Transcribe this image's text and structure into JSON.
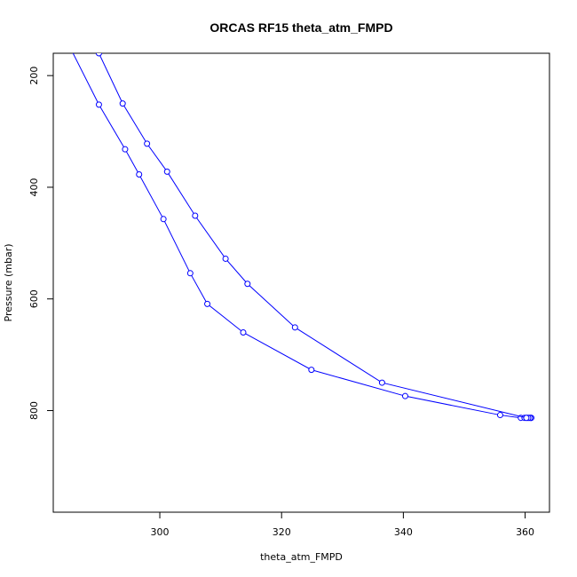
{
  "chart_data": {
    "type": "line",
    "title": "ORCAS RF15 theta_atm_FMPD",
    "xlabel": "theta_atm_FMPD",
    "ylabel": "Pressure (mbar)",
    "xlim": [
      282.5,
      364.0
    ],
    "ylim": [
      982.0,
      160.0
    ],
    "y_inverted": true,
    "x_ticks": [
      300,
      320,
      340,
      360
    ],
    "y_ticks": [
      200,
      400,
      600,
      800
    ],
    "grid": false,
    "legend": "none",
    "series_color": "#0000ff",
    "marker": "open-circle",
    "series": [
      {
        "x": [
          284.5,
          290.0,
          294.3,
          296.6,
          300.6,
          305.0,
          307.8,
          313.7,
          324.9,
          340.3,
          355.9,
          359.3,
          359.9,
          360.2,
          360.5,
          360.8,
          361.0
        ],
        "y": [
          133,
          252,
          332,
          377,
          457,
          554,
          609,
          660,
          727,
          774,
          808,
          813,
          813,
          813,
          813,
          813,
          813
        ]
      },
      {
        "x": [
          361.0,
          360.8,
          360.5,
          360.2,
          336.5,
          322.2,
          314.4,
          310.8,
          305.8,
          301.2,
          297.9,
          293.9,
          290.0,
          287.5
        ],
        "y": [
          813,
          813,
          813,
          813,
          750,
          651,
          573,
          528,
          451,
          372,
          322,
          250,
          160,
          125
        ]
      }
    ]
  }
}
